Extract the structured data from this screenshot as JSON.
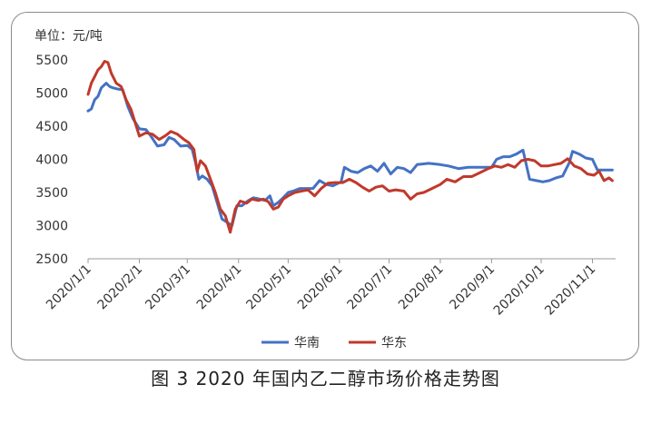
{
  "chart_data": {
    "type": "line",
    "unit_label": "单位：元/吨",
    "y_ticks": [
      2500,
      3000,
      3500,
      4000,
      4500,
      5000,
      5500
    ],
    "ylim": [
      2500,
      5500
    ],
    "x_ticks": [
      "2020/1/1",
      "2020/2/1",
      "2020/3/1",
      "2020/4/1",
      "2020/5/1",
      "2020/6/1",
      "2020/7/1",
      "2020/8/1",
      "2020/9/1",
      "2020/10/1",
      "2020/11/1"
    ],
    "xlim": [
      "2020-01-01",
      "2020-11-15"
    ],
    "grid": false,
    "legend_position": "bottom-center",
    "series": [
      {
        "name": "华南",
        "color": "#4472c4",
        "points": [
          [
            "2020-01-01",
            4730
          ],
          [
            "2020-01-03",
            4760
          ],
          [
            "2020-01-05",
            4900
          ],
          [
            "2020-01-07",
            4950
          ],
          [
            "2020-01-09",
            5080
          ],
          [
            "2020-01-12",
            5150
          ],
          [
            "2020-01-14",
            5100
          ],
          [
            "2020-01-16",
            5080
          ],
          [
            "2020-01-19",
            5060
          ],
          [
            "2020-01-22",
            5050
          ],
          [
            "2020-01-25",
            4800
          ],
          [
            "2020-01-28",
            4620
          ],
          [
            "2020-02-01",
            4460
          ],
          [
            "2020-02-05",
            4450
          ],
          [
            "2020-02-08",
            4350
          ],
          [
            "2020-02-12",
            4200
          ],
          [
            "2020-02-16",
            4220
          ],
          [
            "2020-02-19",
            4330
          ],
          [
            "2020-02-22",
            4300
          ],
          [
            "2020-02-26",
            4200
          ],
          [
            "2020-03-01",
            4210
          ],
          [
            "2020-03-04",
            4150
          ],
          [
            "2020-03-06",
            3950
          ],
          [
            "2020-03-08",
            3700
          ],
          [
            "2020-03-10",
            3750
          ],
          [
            "2020-03-13",
            3700
          ],
          [
            "2020-03-16",
            3600
          ],
          [
            "2020-03-19",
            3350
          ],
          [
            "2020-03-22",
            3100
          ],
          [
            "2020-03-25",
            3050
          ],
          [
            "2020-03-28",
            3000
          ],
          [
            "2020-03-31",
            3300
          ],
          [
            "2020-04-03",
            3300
          ],
          [
            "2020-04-07",
            3380
          ],
          [
            "2020-04-10",
            3420
          ],
          [
            "2020-04-14",
            3400
          ],
          [
            "2020-04-17",
            3380
          ],
          [
            "2020-04-20",
            3450
          ],
          [
            "2020-04-22",
            3300
          ],
          [
            "2020-04-25",
            3350
          ],
          [
            "2020-04-28",
            3420
          ],
          [
            "2020-05-01",
            3500
          ],
          [
            "2020-05-04",
            3520
          ],
          [
            "2020-05-08",
            3560
          ],
          [
            "2020-05-12",
            3560
          ],
          [
            "2020-05-16",
            3560
          ],
          [
            "2020-05-20",
            3680
          ],
          [
            "2020-05-24",
            3620
          ],
          [
            "2020-05-28",
            3600
          ],
          [
            "2020-06-02",
            3660
          ],
          [
            "2020-06-04",
            3880
          ],
          [
            "2020-06-08",
            3820
          ],
          [
            "2020-06-12",
            3800
          ],
          [
            "2020-06-16",
            3860
          ],
          [
            "2020-06-20",
            3900
          ],
          [
            "2020-06-24",
            3820
          ],
          [
            "2020-06-28",
            3940
          ],
          [
            "2020-07-02",
            3780
          ],
          [
            "2020-07-06",
            3880
          ],
          [
            "2020-07-10",
            3860
          ],
          [
            "2020-07-14",
            3800
          ],
          [
            "2020-07-18",
            3920
          ],
          [
            "2020-07-25",
            3940
          ],
          [
            "2020-08-01",
            3920
          ],
          [
            "2020-08-06",
            3900
          ],
          [
            "2020-08-12",
            3860
          ],
          [
            "2020-08-18",
            3880
          ],
          [
            "2020-08-25",
            3880
          ],
          [
            "2020-09-01",
            3880
          ],
          [
            "2020-09-04",
            4000
          ],
          [
            "2020-09-08",
            4040
          ],
          [
            "2020-09-12",
            4040
          ],
          [
            "2020-09-16",
            4080
          ],
          [
            "2020-09-20",
            4140
          ],
          [
            "2020-09-24",
            3700
          ],
          [
            "2020-09-28",
            3680
          ],
          [
            "2020-10-02",
            3660
          ],
          [
            "2020-10-06",
            3680
          ],
          [
            "2020-10-10",
            3720
          ],
          [
            "2020-10-14",
            3750
          ],
          [
            "2020-10-18",
            3950
          ],
          [
            "2020-10-20",
            4120
          ],
          [
            "2020-10-24",
            4080
          ],
          [
            "2020-10-28",
            4020
          ],
          [
            "2020-11-01",
            4000
          ],
          [
            "2020-11-04",
            3840
          ],
          [
            "2020-11-08",
            3840
          ],
          [
            "2020-11-13",
            3840
          ]
        ]
      },
      {
        "name": "华东",
        "color": "#c0392b",
        "points": [
          [
            "2020-01-01",
            4980
          ],
          [
            "2020-01-03",
            5150
          ],
          [
            "2020-01-05",
            5250
          ],
          [
            "2020-01-07",
            5350
          ],
          [
            "2020-01-09",
            5400
          ],
          [
            "2020-01-11",
            5480
          ],
          [
            "2020-01-13",
            5460
          ],
          [
            "2020-01-15",
            5300
          ],
          [
            "2020-01-18",
            5150
          ],
          [
            "2020-01-21",
            5100
          ],
          [
            "2020-01-24",
            4900
          ],
          [
            "2020-01-27",
            4750
          ],
          [
            "2020-02-01",
            4350
          ],
          [
            "2020-02-05",
            4400
          ],
          [
            "2020-02-09",
            4380
          ],
          [
            "2020-02-13",
            4300
          ],
          [
            "2020-02-17",
            4360
          ],
          [
            "2020-02-20",
            4420
          ],
          [
            "2020-02-24",
            4380
          ],
          [
            "2020-02-28",
            4300
          ],
          [
            "2020-03-02",
            4250
          ],
          [
            "2020-03-05",
            4150
          ],
          [
            "2020-03-07",
            3820
          ],
          [
            "2020-03-09",
            3980
          ],
          [
            "2020-03-12",
            3900
          ],
          [
            "2020-03-15",
            3700
          ],
          [
            "2020-03-18",
            3500
          ],
          [
            "2020-03-21",
            3250
          ],
          [
            "2020-03-24",
            3150
          ],
          [
            "2020-03-27",
            2900
          ],
          [
            "2020-03-30",
            3250
          ],
          [
            "2020-04-02",
            3370
          ],
          [
            "2020-04-06",
            3340
          ],
          [
            "2020-04-09",
            3400
          ],
          [
            "2020-04-13",
            3380
          ],
          [
            "2020-04-16",
            3400
          ],
          [
            "2020-04-19",
            3360
          ],
          [
            "2020-04-22",
            3250
          ],
          [
            "2020-04-25",
            3280
          ],
          [
            "2020-04-28",
            3400
          ],
          [
            "2020-05-01",
            3450
          ],
          [
            "2020-05-05",
            3500
          ],
          [
            "2020-05-09",
            3520
          ],
          [
            "2020-05-13",
            3540
          ],
          [
            "2020-05-17",
            3450
          ],
          [
            "2020-05-21",
            3560
          ],
          [
            "2020-05-25",
            3640
          ],
          [
            "2020-05-29",
            3650
          ],
          [
            "2020-06-03",
            3650
          ],
          [
            "2020-06-07",
            3700
          ],
          [
            "2020-06-11",
            3650
          ],
          [
            "2020-06-15",
            3580
          ],
          [
            "2020-06-19",
            3520
          ],
          [
            "2020-06-23",
            3580
          ],
          [
            "2020-06-27",
            3600
          ],
          [
            "2020-07-01",
            3520
          ],
          [
            "2020-07-05",
            3540
          ],
          [
            "2020-07-10",
            3520
          ],
          [
            "2020-07-14",
            3400
          ],
          [
            "2020-07-18",
            3480
          ],
          [
            "2020-07-22",
            3500
          ],
          [
            "2020-07-27",
            3560
          ],
          [
            "2020-08-01",
            3620
          ],
          [
            "2020-08-05",
            3700
          ],
          [
            "2020-08-10",
            3660
          ],
          [
            "2020-08-15",
            3740
          ],
          [
            "2020-08-20",
            3740
          ],
          [
            "2020-08-25",
            3800
          ],
          [
            "2020-08-30",
            3860
          ],
          [
            "2020-09-03",
            3900
          ],
          [
            "2020-09-07",
            3880
          ],
          [
            "2020-09-11",
            3920
          ],
          [
            "2020-09-15",
            3880
          ],
          [
            "2020-09-19",
            3980
          ],
          [
            "2020-09-23",
            4000
          ],
          [
            "2020-09-27",
            3980
          ],
          [
            "2020-10-01",
            3900
          ],
          [
            "2020-10-05",
            3900
          ],
          [
            "2020-10-09",
            3920
          ],
          [
            "2020-10-13",
            3940
          ],
          [
            "2020-10-17",
            4010
          ],
          [
            "2020-10-21",
            3900
          ],
          [
            "2020-10-25",
            3860
          ],
          [
            "2020-10-29",
            3780
          ],
          [
            "2020-11-02",
            3760
          ],
          [
            "2020-11-05",
            3820
          ],
          [
            "2020-11-08",
            3680
          ],
          [
            "2020-11-11",
            3720
          ],
          [
            "2020-11-13",
            3680
          ]
        ]
      }
    ]
  },
  "caption": "图 3  2020 年国内乙二醇市场价格走势图"
}
